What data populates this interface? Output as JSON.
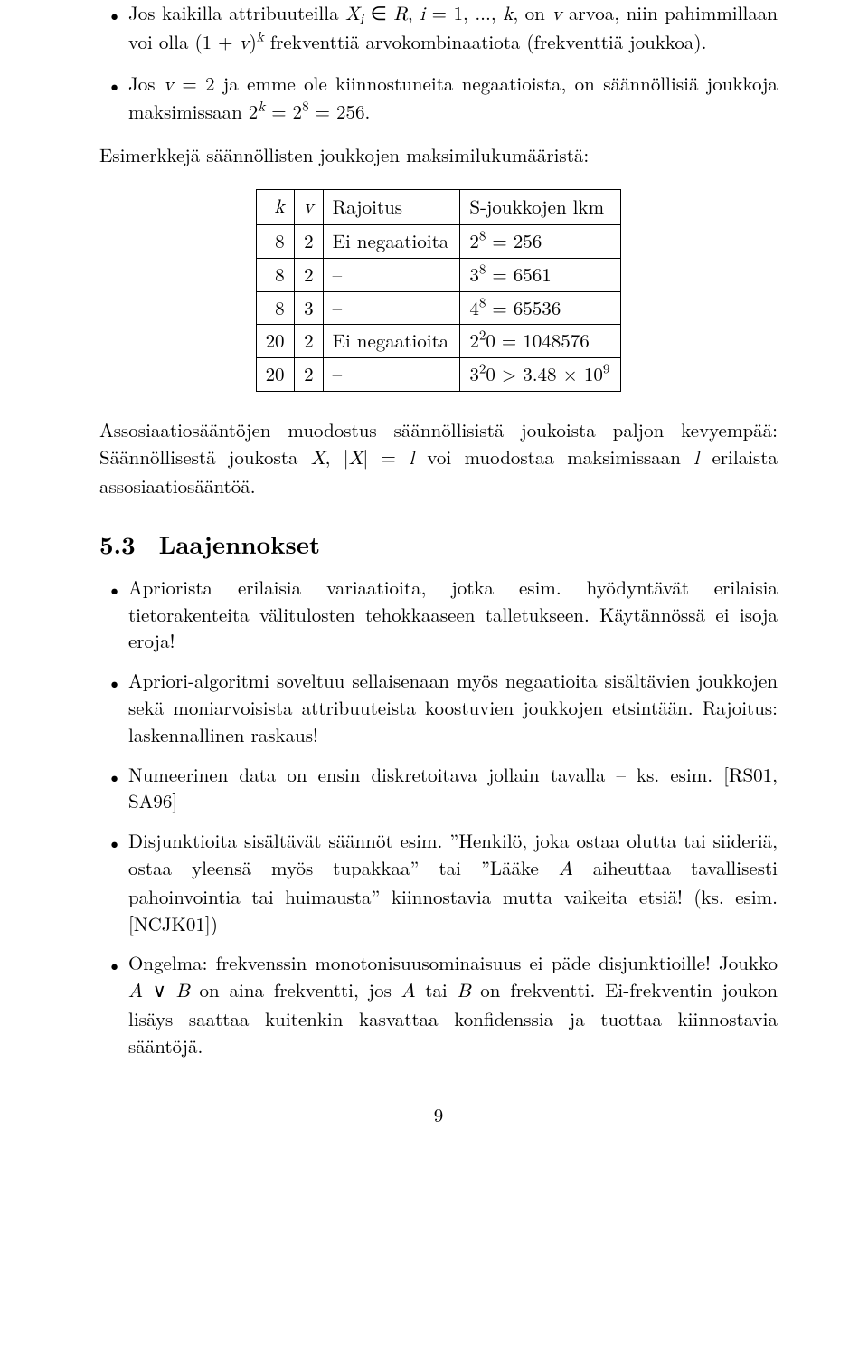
{
  "bullets_top": {
    "b1_pre": "Jos kaikilla attribuuteilla ",
    "b1_mid1": " ∈ ",
    "b1_R": "R",
    "b1_mid2": ", ",
    "b1_i_eq": " = 1, ..., ",
    "b1_k": "k",
    "b1_after_k": ", on ",
    "b1_v": "v",
    "b1_tail1": " arvoa, niin pahimmillaan voi olla (1 + ",
    "b1_v2": "v",
    "b1_tail2": ")",
    "b1_exp_k": "k",
    "b1_tail3": " frekventtiä arvokombinaatiota (frekventtiä joukkoa).",
    "b2_pre": "Jos ",
    "b2_v": "v",
    "b2_mid1": " = 2 ja emme ole kiinnostuneita negaatioista, on säännöllisiä joukkoja maksimissaan 2",
    "b2_k": "k",
    "b2_mid2": " = 2",
    "b2_8": "8",
    "b2_tail": " = 256."
  },
  "para_above_table": "Esimerkkejä säännöllisten joukkojen maksimilukumääristä:",
  "table": {
    "headers": {
      "k": "k",
      "v": "v",
      "rajoitus": "Rajoitus",
      "s": "S-joukkojen lkm"
    },
    "rows": [
      {
        "k": "8",
        "v": "2",
        "r": "Ei negaatioita",
        "s_base": "2",
        "s_exp": "8",
        "s_tail": " = 256"
      },
      {
        "k": "8",
        "v": "2",
        "r": "–",
        "s_base": "3",
        "s_exp": "8",
        "s_tail": " = 6561"
      },
      {
        "k": "8",
        "v": "3",
        "r": "–",
        "s_base": "4",
        "s_exp": "8",
        "s_tail": " = 65536"
      },
      {
        "k": "20",
        "v": "2",
        "r": "Ei negaatioita",
        "s_base": "2",
        "s_exp": "2",
        "s_tail": "0 = 1048576"
      },
      {
        "k": "20",
        "v": "2",
        "r": "–",
        "s_base": "3",
        "s_exp": "2",
        "s_tail": "0 > 3.48 × 10",
        "s_exp2": "9"
      }
    ]
  },
  "para_below_table": {
    "line1": "Assosiaatiosääntöjen muodostus säännöllisistä joukoista paljon kevyempää: Säännöllisestä joukosta ",
    "X": "X",
    "mid1": ", |",
    "X2": "X",
    "mid2": "| = ",
    "l": "l",
    "mid3": " voi muodostaa maksimissaan ",
    "l2": "l",
    "tail": " erilaista assosiaatiosääntöä."
  },
  "section": {
    "num": "5.3",
    "title": "Laajennokset"
  },
  "bullets_bottom": {
    "b1": "Apriorista erilaisia variaatioita, jotka esim. hyödyntävät erilaisia tietorakenteita välitulosten tehokkaaseen talletukseen. Käytännössä ei isoja eroja!",
    "b2": "Apriori-algoritmi soveltuu sellaisenaan myös negaatioita sisältävien joukkojen sekä moniarvoisista attribuuteista koostuvien joukkojen etsintään. Rajoitus: laskennallinen raskaus!",
    "b3": "Numeerinen data on ensin diskretoitava jollain tavalla – ks. esim. [RS01, SA96]",
    "b4_pre": "Disjunktioita sisältävät säännöt esim. ”Henkilö, joka ostaa olutta tai siideriä, ostaa yleensä myös tupakkaa” tai ”Lääke ",
    "b4_A": "A",
    "b4_tail": " aiheuttaa tavallisesti pahoinvointia tai huimausta” kiinnostavia mutta vaikeita etsiä! (ks. esim. [NCJK01])",
    "b5_pre": "Ongelma: frekvenssin monotonisuusominaisuus ei päde disjunktioille! Joukko ",
    "b5_A": "A",
    "b5_or": " ∨ ",
    "b5_B": "B",
    "b5_mid": " on aina frekventti, jos ",
    "b5_A2": "A",
    "b5_or_txt": " tai ",
    "b5_B2": "B",
    "b5_tail": " on frekventti. Ei-frekventin joukon lisäys saattaa kuitenkin kasvattaa konfidenssia ja tuottaa kiinnostavia sääntöjä."
  },
  "page_number": "9"
}
